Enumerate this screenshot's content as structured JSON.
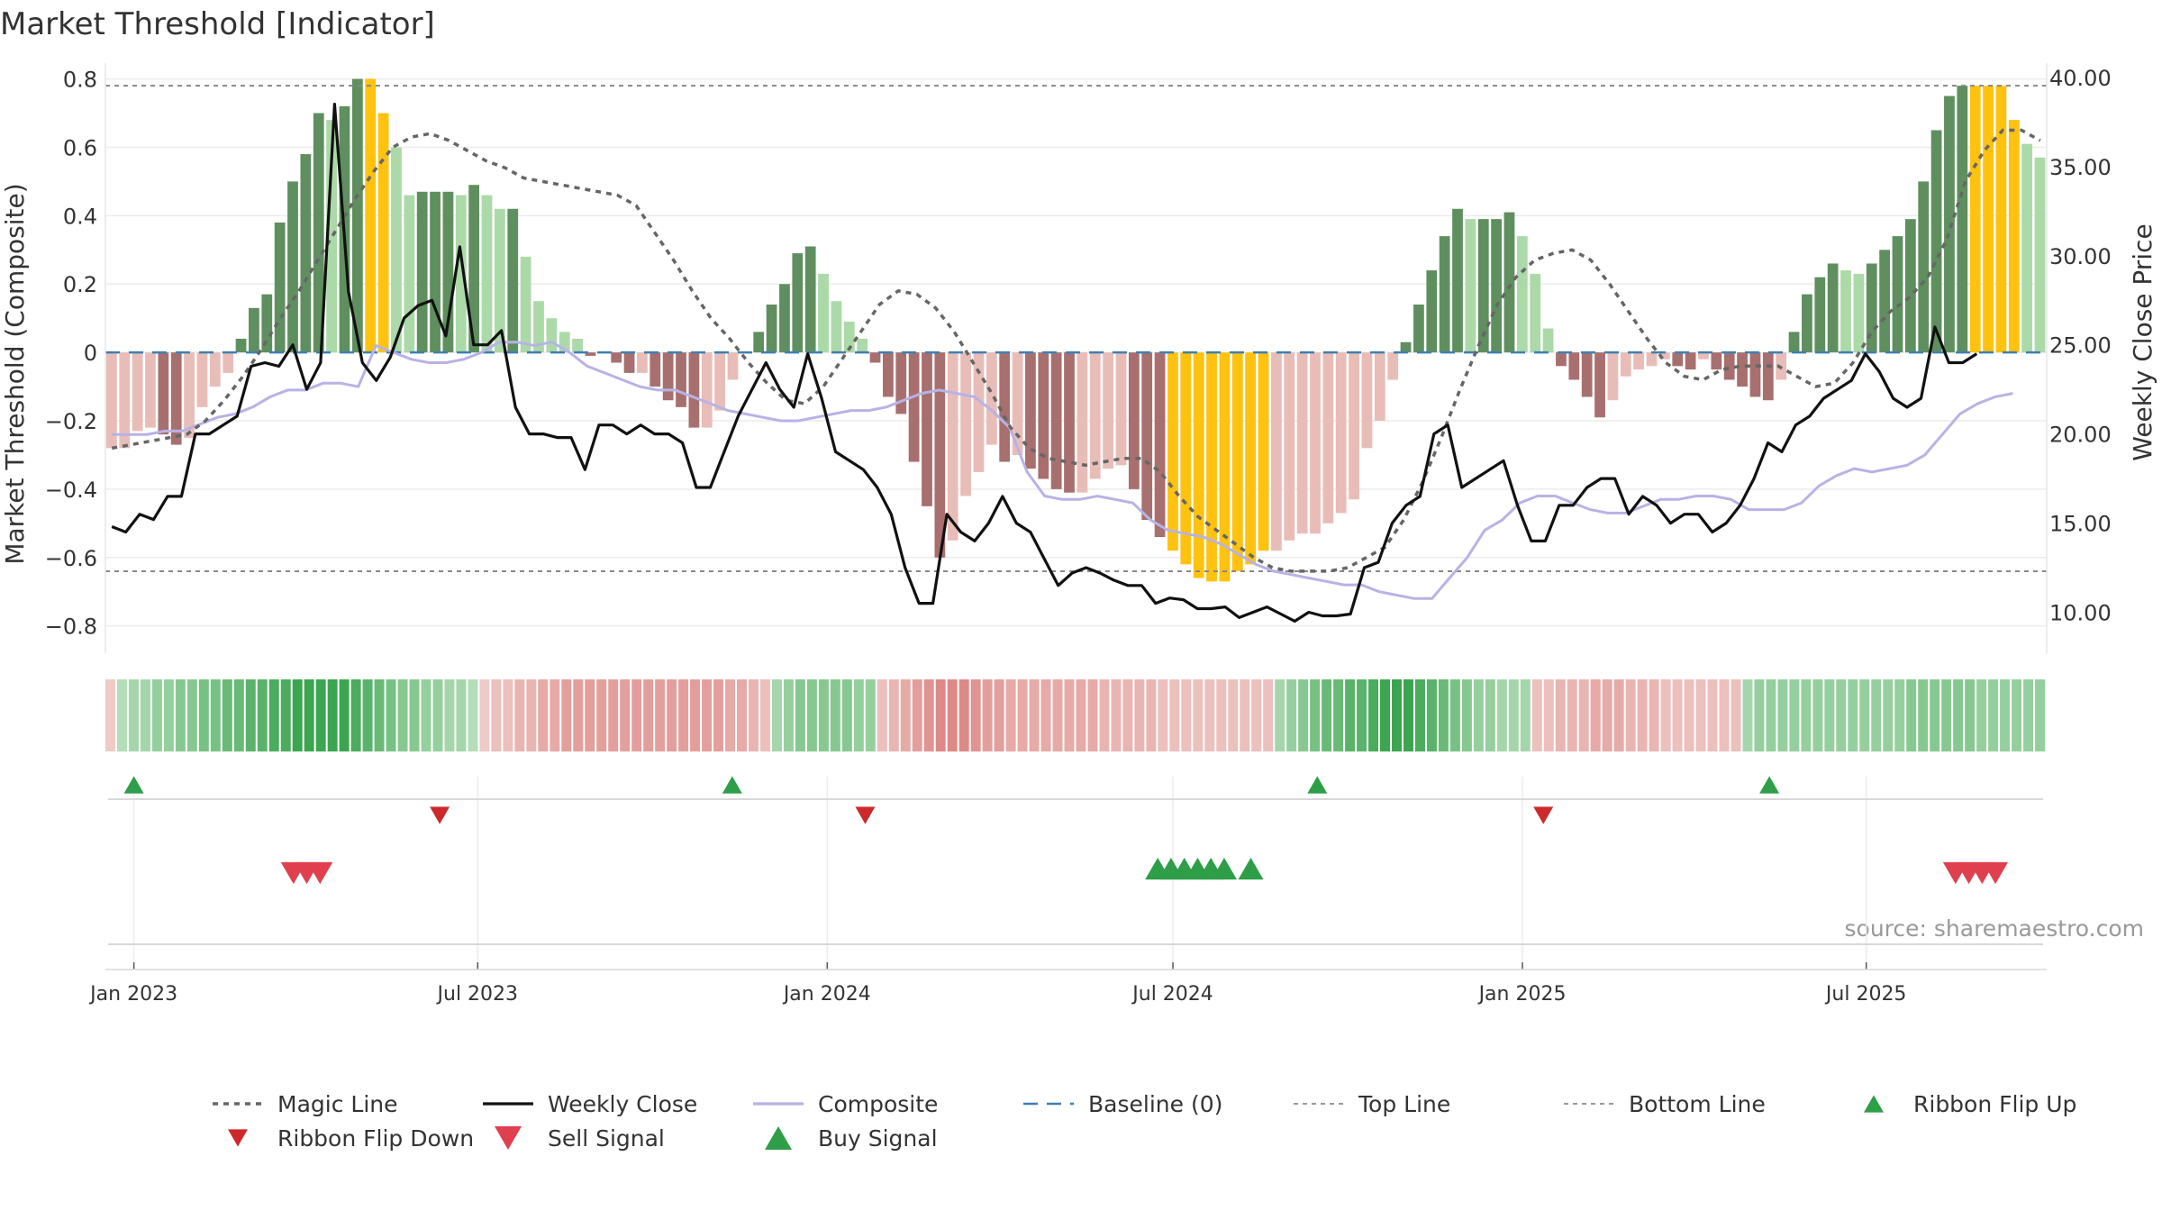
{
  "title": "Market Threshold [Indicator]",
  "source": "source: sharemaestro.com",
  "colors": {
    "strong_green": "#5f8f5f",
    "light_green": "#acd9a8",
    "strong_red": "#a86f6f",
    "light_red": "#e8bdb8",
    "gold": "#ffc20e",
    "magic": "#666666",
    "close": "#111111",
    "composite": "#b8b2e6",
    "baseline": "#3f7fb2",
    "buy": "#2e9e48",
    "sell": "#e0404e",
    "ribbon_down": "#cc2a2a"
  },
  "chart_data": {
    "type": "bar",
    "title": "Market Threshold [Indicator]",
    "ylabel": "Market Threshold (Composite)",
    "y2label": "Weekly Close Price",
    "ylim": [
      -0.88,
      0.82
    ],
    "y2lim": [
      7.7,
      40.3
    ],
    "yticks": [
      0.8,
      0.6,
      0.4,
      0.2,
      0,
      -0.2,
      -0.4,
      -0.6,
      -0.8
    ],
    "ytick_labels": [
      "0.8",
      "0.6",
      "0.4",
      "0.2",
      "0",
      "−0.2",
      "−0.4",
      "−0.6",
      "−0.8"
    ],
    "y2ticks": [
      40,
      35,
      30,
      25,
      20,
      15,
      10
    ],
    "y2tick_labels": [
      "40.00",
      "35.00",
      "30.00",
      "25.00",
      "20.00",
      "15.00",
      "10.00"
    ],
    "top_line": 0.78,
    "bottom_line": -0.64,
    "start_date": "2022-12-17",
    "end_date": "2025-10-04",
    "x_ticks": [
      {
        "date": "2023-01-01",
        "label": "Jan 2023"
      },
      {
        "date": "2023-07-01",
        "label": "Jul 2023"
      },
      {
        "date": "2024-01-01",
        "label": "Jan 2024"
      },
      {
        "date": "2024-07-01",
        "label": "Jul 2024"
      },
      {
        "date": "2025-01-01",
        "label": "Jan 2025"
      },
      {
        "date": "2025-07-01",
        "label": "Jul 2025"
      }
    ],
    "composite_values": [
      -0.28,
      -0.28,
      -0.23,
      -0.22,
      -0.24,
      -0.27,
      -0.25,
      -0.16,
      -0.1,
      -0.06,
      0.04,
      0.13,
      0.17,
      0.38,
      0.5,
      0.58,
      0.7,
      0.68,
      0.72,
      0.8,
      0.8,
      0.7,
      0.6,
      0.46,
      0.47,
      0.47,
      0.47,
      0.46,
      0.49,
      0.46,
      0.42,
      0.42,
      0.28,
      0.15,
      0.1,
      0.06,
      0.04,
      -0.01,
      0.0,
      -0.03,
      -0.06,
      -0.06,
      -0.1,
      -0.14,
      -0.16,
      -0.22,
      -0.22,
      -0.17,
      -0.08,
      0.0,
      0.06,
      0.14,
      0.2,
      0.29,
      0.31,
      0.23,
      0.15,
      0.09,
      0.04,
      -0.03,
      -0.13,
      -0.18,
      -0.32,
      -0.45,
      -0.6,
      -0.55,
      -0.42,
      -0.35,
      -0.27,
      -0.32,
      -0.3,
      -0.34,
      -0.37,
      -0.4,
      -0.41,
      -0.41,
      -0.37,
      -0.34,
      -0.33,
      -0.4,
      -0.49,
      -0.54,
      -0.58,
      -0.62,
      -0.66,
      -0.67,
      -0.67,
      -0.64,
      -0.62,
      -0.58,
      -0.58,
      -0.55,
      -0.53,
      -0.53,
      -0.5,
      -0.47,
      -0.43,
      -0.28,
      -0.2,
      -0.08,
      0.03,
      0.14,
      0.24,
      0.34,
      0.42,
      0.39,
      0.39,
      0.39,
      0.41,
      0.34,
      0.23,
      0.07,
      -0.04,
      -0.08,
      -0.13,
      -0.19,
      -0.14,
      -0.07,
      -0.05,
      -0.04,
      -0.02,
      -0.04,
      -0.05,
      -0.02,
      -0.05,
      -0.08,
      -0.1,
      -0.13,
      -0.14,
      -0.08,
      0.06,
      0.17,
      0.22,
      0.26,
      0.24,
      0.23,
      0.26,
      0.3,
      0.34,
      0.39,
      0.5,
      0.65,
      0.75,
      0.78,
      0.78,
      0.78,
      0.78,
      0.68,
      0.61,
      0.57
    ],
    "gold_bars": [
      20,
      21,
      82,
      83,
      84,
      85,
      86,
      87,
      88,
      89,
      144,
      145,
      146,
      147
    ],
    "magic_line": [
      -0.28,
      -0.27,
      -0.26,
      -0.25,
      -0.24,
      -0.2,
      -0.14,
      -0.07,
      0.01,
      0.1,
      0.18,
      0.27,
      0.36,
      0.45,
      0.53,
      0.6,
      0.63,
      0.64,
      0.62,
      0.59,
      0.56,
      0.54,
      0.51,
      0.5,
      0.49,
      0.48,
      0.47,
      0.46,
      0.43,
      0.35,
      0.27,
      0.18,
      0.1,
      0.04,
      -0.03,
      -0.09,
      -0.14,
      -0.15,
      -0.1,
      -0.02,
      0.06,
      0.14,
      0.18,
      0.17,
      0.13,
      0.06,
      -0.03,
      -0.12,
      -0.22,
      -0.28,
      -0.31,
      -0.32,
      -0.33,
      -0.32,
      -0.31,
      -0.31,
      -0.35,
      -0.42,
      -0.48,
      -0.52,
      -0.56,
      -0.6,
      -0.63,
      -0.64,
      -0.64,
      -0.64,
      -0.63,
      -0.6,
      -0.57,
      -0.49,
      -0.38,
      -0.25,
      -0.11,
      0.02,
      0.14,
      0.22,
      0.27,
      0.29,
      0.3,
      0.27,
      0.2,
      0.12,
      0.04,
      -0.03,
      -0.07,
      -0.08,
      -0.05,
      -0.04,
      -0.04,
      -0.04,
      -0.07,
      -0.1,
      -0.09,
      -0.03,
      0.06,
      0.12,
      0.16,
      0.22,
      0.33,
      0.5,
      0.59,
      0.65,
      0.65,
      0.62
    ],
    "magic_line_start_week": 0,
    "weekly_close": [
      14.8,
      14.5,
      15.5,
      15.2,
      16.5,
      16.5,
      20.0,
      20.0,
      20.5,
      21.0,
      23.8,
      24.0,
      23.8,
      25.0,
      22.5,
      24.0,
      38.5,
      28.0,
      24.0,
      23.0,
      24.3,
      26.5,
      27.2,
      27.5,
      25.5,
      30.5,
      25.0,
      25.0,
      25.8,
      21.5,
      20.0,
      20.0,
      19.8,
      19.8,
      18.0,
      20.5,
      20.5,
      20.0,
      20.5,
      20.0,
      20.0,
      19.5,
      17.0,
      17.0,
      19.0,
      21.0,
      22.5,
      24.0,
      22.5,
      21.5,
      24.5,
      22.0,
      19.0,
      18.5,
      18.0,
      17.0,
      15.5,
      12.5,
      10.5,
      10.5,
      15.5,
      14.5,
      14.0,
      15.0,
      16.5,
      15.0,
      14.5,
      13.0,
      11.5,
      12.2,
      12.5,
      12.2,
      11.8,
      11.5,
      11.5,
      10.5,
      10.8,
      10.7,
      10.2,
      10.2,
      10.3,
      9.7,
      10.0,
      10.3,
      9.9,
      9.5,
      10.0,
      9.8,
      9.8,
      9.9,
      12.5,
      12.8,
      15.0,
      16.0,
      16.5,
      20.0,
      20.5,
      17.0,
      17.5,
      18.0,
      18.5,
      16.0,
      14.0,
      14.0,
      16.0,
      16.0,
      17.0,
      17.5,
      17.5,
      15.5,
      16.5,
      16.0,
      15.0,
      15.5,
      15.5,
      14.5,
      15.0,
      16.0,
      17.5,
      19.5,
      19.0,
      20.5,
      21.0,
      22.0,
      22.5,
      23.0,
      24.5,
      23.5,
      22.0,
      21.5,
      22.0,
      26.0,
      24.0,
      24.0,
      24.5
    ],
    "weekly_close_step": 1.0753,
    "composite_line": [
      -0.24,
      -0.24,
      -0.24,
      -0.23,
      -0.23,
      -0.21,
      -0.19,
      -0.18,
      -0.16,
      -0.13,
      -0.11,
      -0.11,
      -0.09,
      -0.09,
      -0.1,
      0.02,
      0.0,
      -0.02,
      -0.03,
      -0.03,
      -0.02,
      0.0,
      0.03,
      0.03,
      0.02,
      0.03,
      0.0,
      -0.04,
      -0.06,
      -0.08,
      -0.1,
      -0.11,
      -0.11,
      -0.13,
      -0.15,
      -0.17,
      -0.18,
      -0.19,
      -0.2,
      -0.2,
      -0.19,
      -0.18,
      -0.17,
      -0.17,
      -0.16,
      -0.14,
      -0.12,
      -0.11,
      -0.12,
      -0.13,
      -0.17,
      -0.22,
      -0.35,
      -0.42,
      -0.43,
      -0.43,
      -0.42,
      -0.43,
      -0.44,
      -0.49,
      -0.52,
      -0.53,
      -0.54,
      -0.56,
      -0.59,
      -0.62,
      -0.64,
      -0.65,
      -0.66,
      -0.67,
      -0.68,
      -0.68,
      -0.7,
      -0.71,
      -0.72,
      -0.72,
      -0.66,
      -0.6,
      -0.52,
      -0.49,
      -0.44,
      -0.42,
      -0.42,
      -0.44,
      -0.46,
      -0.47,
      -0.47,
      -0.45,
      -0.43,
      -0.43,
      -0.42,
      -0.42,
      -0.43,
      -0.46,
      -0.46,
      -0.46,
      -0.44,
      -0.39,
      -0.36,
      -0.34,
      -0.35,
      -0.34,
      -0.33,
      -0.3,
      -0.24,
      -0.18,
      -0.15,
      -0.13,
      -0.12
    ],
    "composite_line_step": 1.36,
    "ribbon": [
      -0.2,
      0.2,
      0.3,
      0.3,
      0.4,
      0.4,
      0.5,
      0.5,
      0.6,
      0.6,
      0.7,
      0.7,
      0.8,
      0.8,
      0.9,
      0.9,
      1.0,
      1.0,
      1.0,
      1.0,
      1.0,
      0.9,
      0.8,
      0.7,
      0.6,
      0.5,
      0.5,
      0.4,
      0.4,
      0.3,
      0.3,
      0.2,
      -0.2,
      -0.3,
      -0.3,
      -0.4,
      -0.4,
      -0.5,
      -0.5,
      -0.6,
      -0.6,
      -0.6,
      -0.6,
      -0.6,
      -0.6,
      -0.6,
      -0.6,
      -0.6,
      -0.6,
      -0.6,
      -0.6,
      -0.6,
      -0.6,
      -0.5,
      -0.5,
      -0.4,
      -0.3,
      0.3,
      0.4,
      0.5,
      0.5,
      0.5,
      0.5,
      0.5,
      0.4,
      0.4,
      -0.3,
      -0.4,
      -0.5,
      -0.6,
      -0.7,
      -0.8,
      -0.8,
      -0.8,
      -0.7,
      -0.6,
      -0.6,
      -0.5,
      -0.5,
      -0.5,
      -0.5,
      -0.5,
      -0.5,
      -0.5,
      -0.5,
      -0.4,
      -0.4,
      -0.4,
      -0.4,
      -0.4,
      -0.3,
      -0.3,
      -0.3,
      -0.3,
      -0.3,
      -0.3,
      -0.3,
      -0.3,
      -0.3,
      -0.3,
      0.3,
      0.4,
      0.5,
      0.6,
      0.7,
      0.7,
      0.8,
      0.8,
      0.9,
      1.0,
      1.0,
      1.0,
      0.9,
      0.8,
      0.7,
      0.6,
      0.5,
      0.4,
      0.4,
      0.3,
      0.3,
      0.3,
      -0.3,
      -0.3,
      -0.4,
      -0.4,
      -0.4,
      -0.5,
      -0.5,
      -0.5,
      -0.4,
      -0.4,
      -0.4,
      -0.3,
      -0.3,
      -0.3,
      -0.3,
      -0.3,
      -0.3,
      -0.3,
      0.3,
      0.4,
      0.4,
      0.4,
      0.4,
      0.4,
      0.4,
      0.4,
      0.4,
      0.4,
      0.4,
      0.4,
      0.4,
      0.4,
      0.5,
      0.5,
      0.5,
      0.5,
      0.5,
      0.5,
      0.4,
      0.4,
      0.4,
      0.4,
      0.4,
      0.4
    ],
    "ribbon_flip_up": [
      "2023-01-01",
      "2023-11-12",
      "2024-09-15",
      "2025-05-11"
    ],
    "ribbon_flip_down": [
      "2023-06-11",
      "2024-01-21",
      "2025-01-12"
    ],
    "sell_signals": [
      "2023-03-26",
      "2023-04-02",
      "2023-04-09",
      "2025-08-17",
      "2025-08-24",
      "2025-08-31",
      "2025-09-07"
    ],
    "buy_signals": [
      "2024-06-23",
      "2024-06-30",
      "2024-07-07",
      "2024-07-14",
      "2024-07-21",
      "2024-07-28",
      "2024-08-11"
    ],
    "legend_placement": "bottom"
  },
  "legend": [
    {
      "label": "Magic Line",
      "kind": "dotted",
      "color": "#666666"
    },
    {
      "label": "Weekly Close",
      "kind": "line",
      "color": "#111111"
    },
    {
      "label": "Composite",
      "kind": "line",
      "color": "#b8b2e6"
    },
    {
      "label": "Baseline (0)",
      "kind": "dashed",
      "color": "#3f7fb2"
    },
    {
      "label": "Top Line",
      "kind": "dotted-fine",
      "color": "#999999"
    },
    {
      "label": "Bottom Line",
      "kind": "dotted-fine",
      "color": "#999999"
    },
    {
      "label": "Ribbon Flip Up",
      "kind": "tri-up-small",
      "color": "#2e9e48"
    },
    {
      "label": "Ribbon Flip Down",
      "kind": "tri-down-small",
      "color": "#cc2a2a"
    },
    {
      "label": "Sell Signal",
      "kind": "tri-down",
      "color": "#e0404e"
    },
    {
      "label": "Buy Signal",
      "kind": "tri-up",
      "color": "#2e9e48"
    }
  ]
}
